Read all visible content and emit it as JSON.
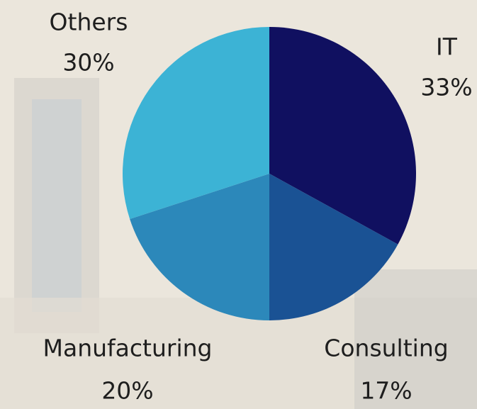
{
  "chart_data": {
    "type": "pie",
    "categories": [
      "IT",
      "Consulting",
      "Manufacturing",
      "Others"
    ],
    "values": [
      33,
      17,
      20,
      30
    ],
    "value_labels": [
      "33%",
      "17%",
      "20%",
      "30%"
    ],
    "colors": [
      "#101060",
      "#1a5294",
      "#2c88ba",
      "#3cb3d5"
    ]
  }
}
